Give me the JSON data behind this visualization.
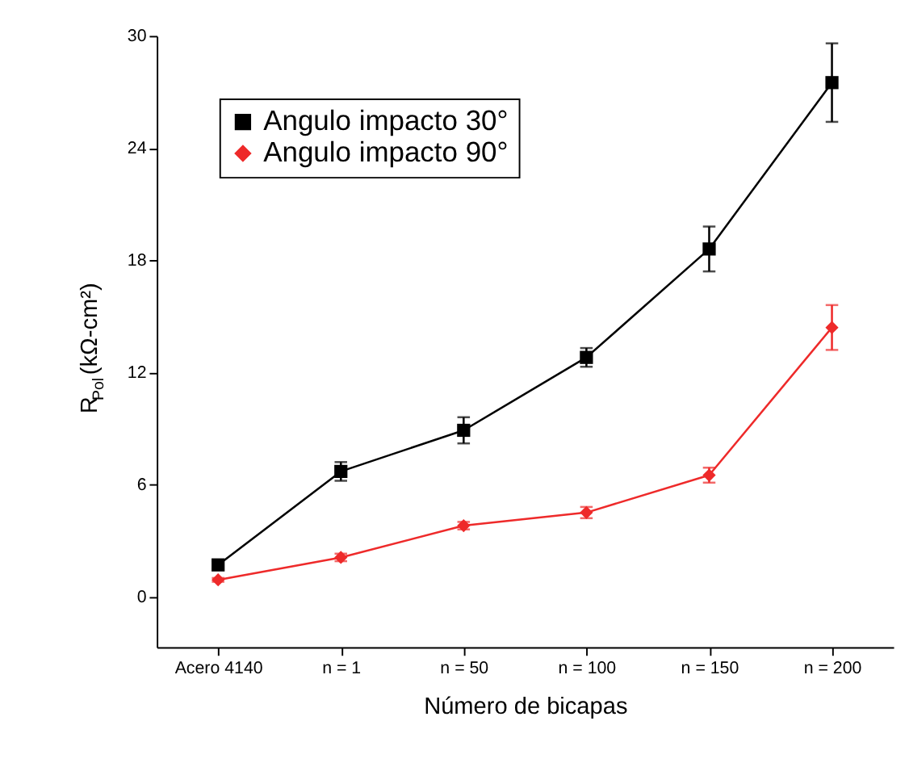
{
  "chart_data": {
    "type": "line",
    "xlabel": "Número de bicapas",
    "ylabel": "R$_{Pol}$(kΩ-cm²)",
    "categories": [
      "Acero 4140",
      "n = 1",
      "n = 50",
      "n = 100",
      "n = 150",
      "n = 200"
    ],
    "ylim": [
      -2.7,
      30
    ],
    "yticks": [
      0,
      6,
      12,
      18,
      24,
      30
    ],
    "grid": false,
    "legend": "top left",
    "series": [
      {
        "name": "Angulo impacto 30°",
        "color": "#000000",
        "marker": "square",
        "values": [
          1.7,
          6.7,
          8.9,
          12.8,
          18.6,
          27.5
        ],
        "errors": [
          0.2,
          0.5,
          0.7,
          0.5,
          1.2,
          2.1
        ]
      },
      {
        "name": "Angulo impacto 90°",
        "color": "#ee2a2a",
        "marker": "diamond",
        "values": [
          0.9,
          2.1,
          3.8,
          4.5,
          6.5,
          14.4
        ],
        "errors": [
          0.1,
          0.2,
          0.2,
          0.3,
          0.4,
          1.2
        ]
      }
    ]
  }
}
